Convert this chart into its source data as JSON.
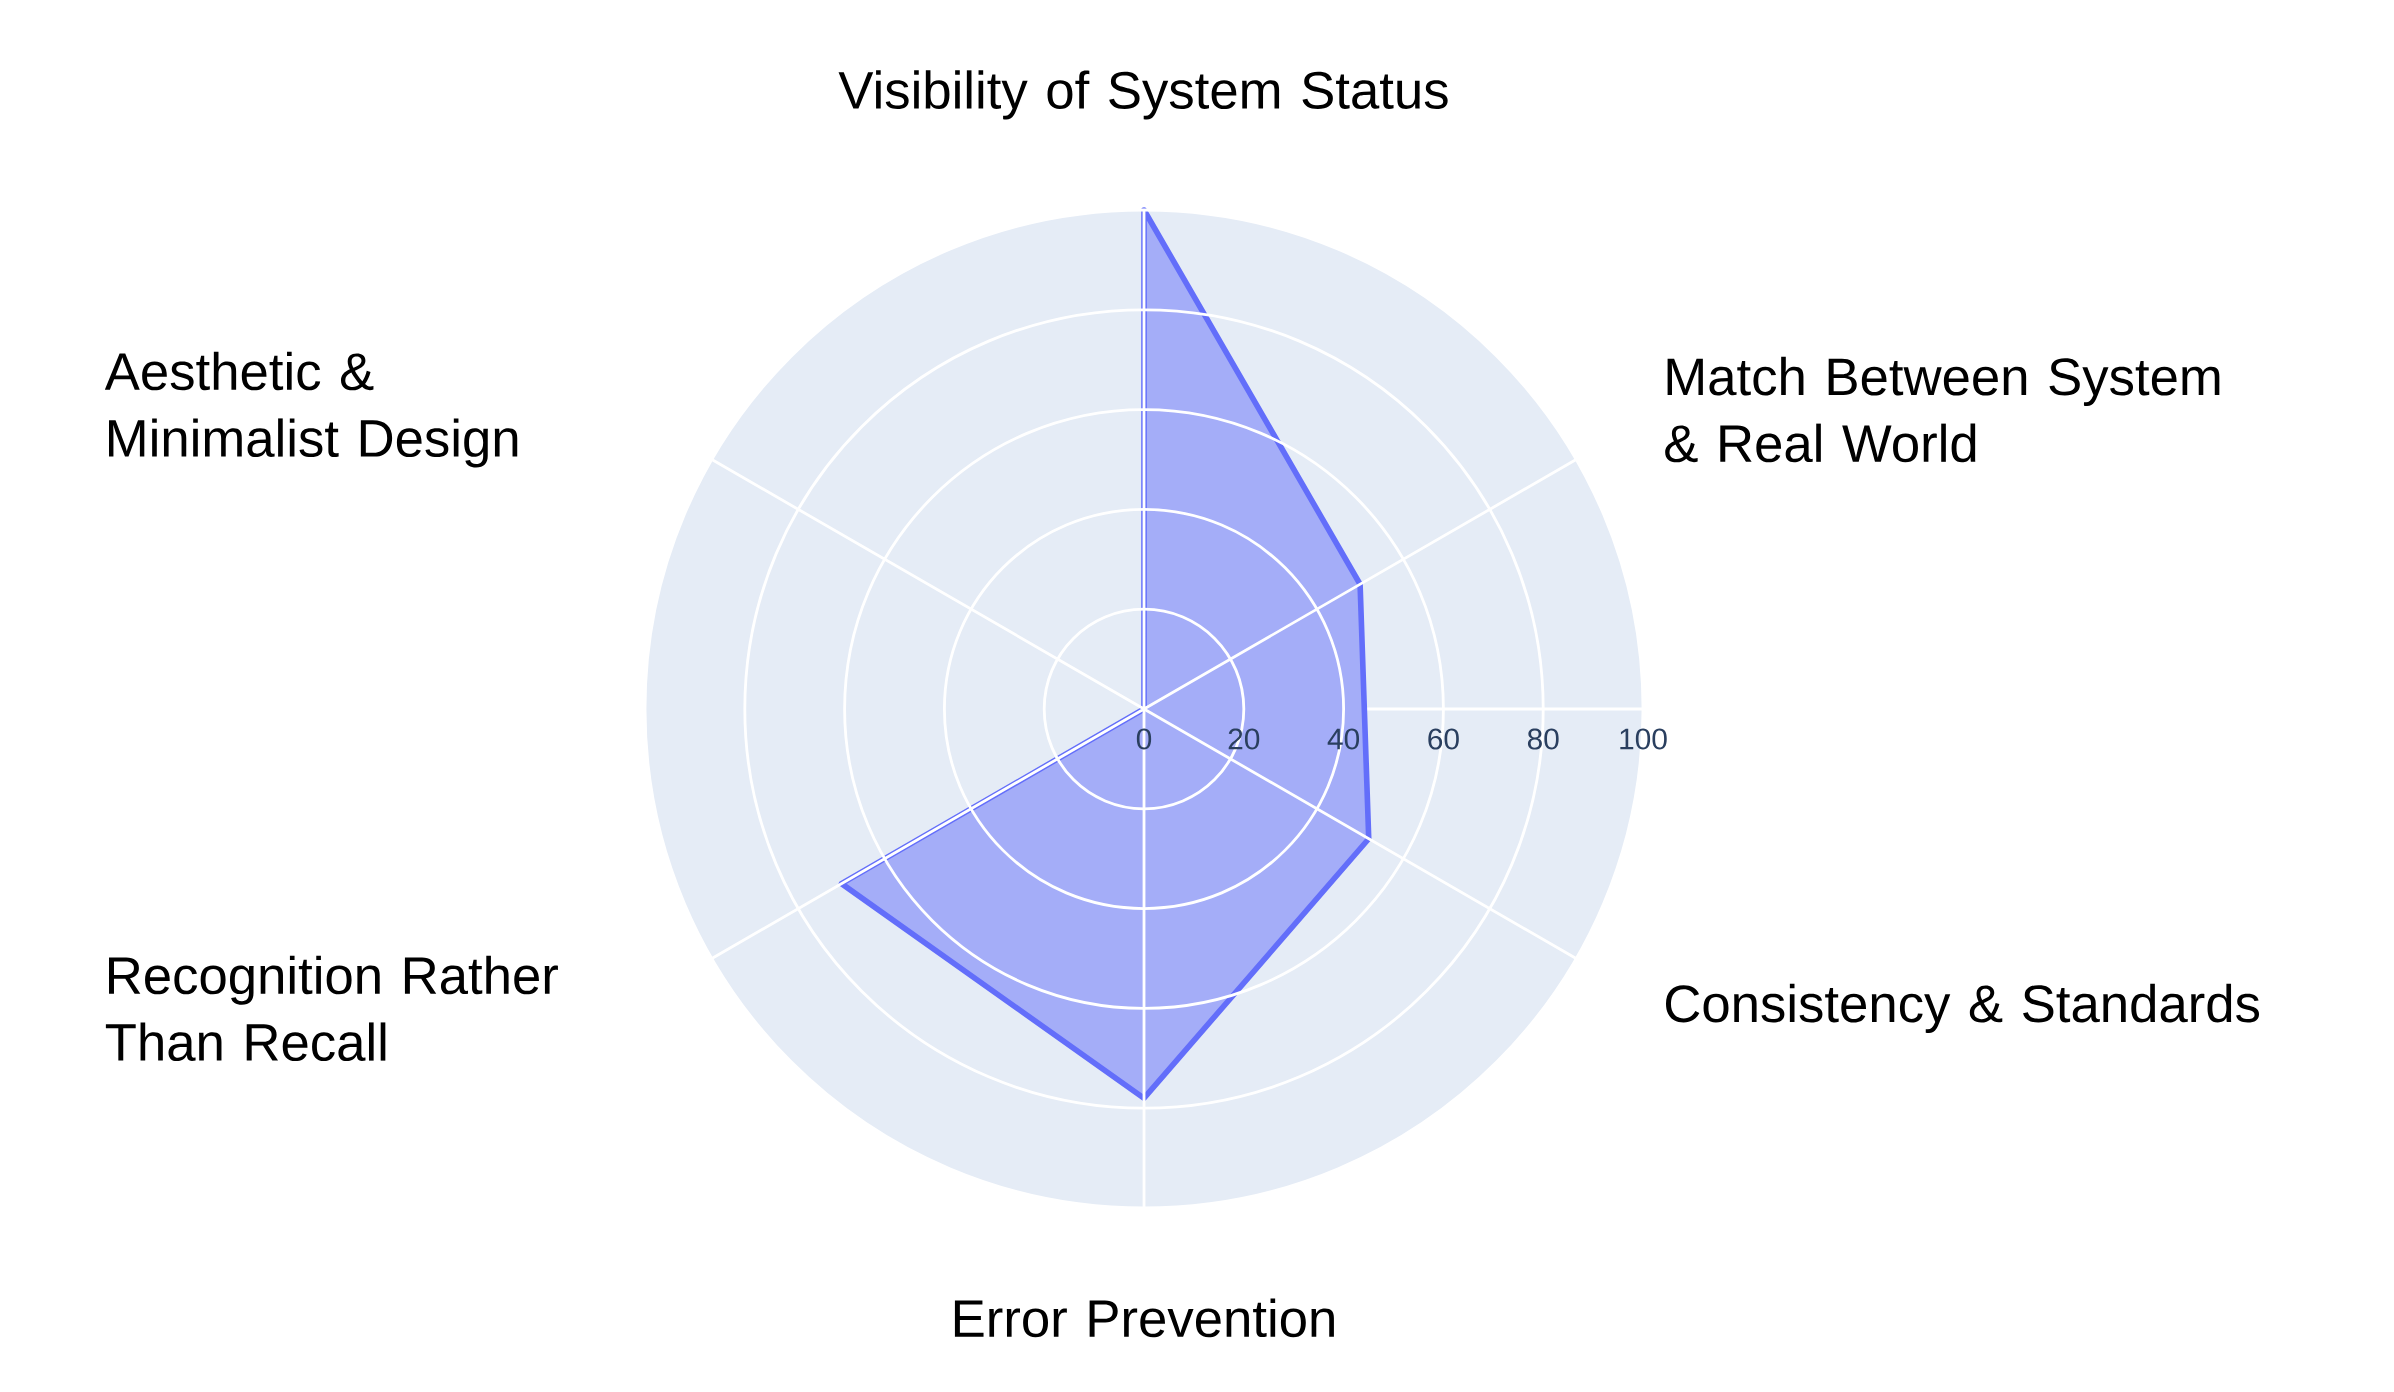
{
  "chart_data": {
    "type": "radar",
    "categories": [
      "Visibility of System Status",
      "Match Between System & Real World",
      "Consistency & Standards",
      "Error Prevention",
      "Recognition Rather Than Recall",
      "Aesthetic & Minimalist Design"
    ],
    "series": [
      {
        "color": "#636efa",
        "values": [
          100,
          50,
          52,
          78,
          70,
          0
        ]
      }
    ],
    "ylim": [
      0,
      100
    ],
    "yticks": [
      0,
      20,
      40,
      60,
      80,
      100
    ],
    "grid": true
  }
}
